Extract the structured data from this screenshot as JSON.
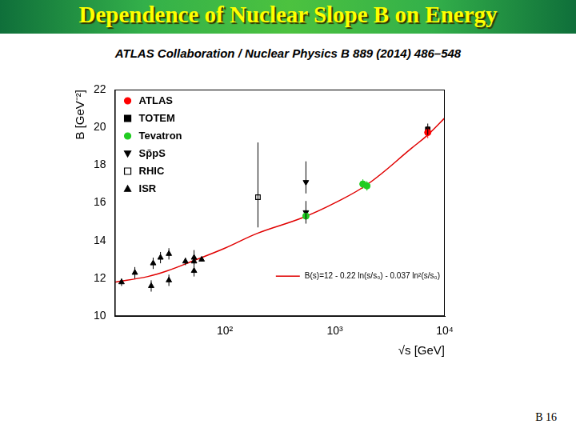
{
  "slide": {
    "title": "Dependence of Nuclear Slope B on Energy",
    "citation": "ATLAS Collaboration / Nuclear Physics B 889 (2014) 486–548",
    "page": "B 16"
  },
  "chart_data": {
    "type": "scatter",
    "x_label": "√s [GeV]",
    "y_label": "B [GeV⁻²]",
    "log": "x",
    "grid": false,
    "legend": "upper left",
    "xlim": [
      10,
      10000
    ],
    "xticks": [
      {
        "value": 100,
        "label": "10²"
      },
      {
        "value": 1000,
        "label": "10³"
      },
      {
        "value": 10000,
        "label": "10⁴"
      }
    ],
    "ylim": [
      10,
      22
    ],
    "yticks": [
      10,
      12,
      14,
      16,
      18,
      20,
      22
    ],
    "series": [
      {
        "name": "ATLAS",
        "color": "#ff0000",
        "marker": "circle",
        "x": [
          7000
        ],
        "values": [
          19.73
        ],
        "error_minus": [
          0.3
        ],
        "error_plus": [
          0.3
        ]
      },
      {
        "name": "TOTEM",
        "color": "#000000",
        "marker": "square",
        "x": [
          7000
        ],
        "values": [
          19.9
        ],
        "error_minus": [
          0.3
        ],
        "error_plus": [
          0.3
        ]
      },
      {
        "name": "Tevatron",
        "color": "#22cc22",
        "marker": "circle",
        "x": [
          546,
          1800,
          1960
        ],
        "values": [
          15.3,
          17.0,
          16.9
        ],
        "error_minus": [
          0.2,
          0.25,
          0.25
        ],
        "error_plus": [
          0.2,
          0.25,
          0.25
        ]
      },
      {
        "name": "Sp̄pS",
        "color": "#000000",
        "marker": "triangle-down",
        "x": [
          546,
          546
        ],
        "values": [
          17.1,
          15.5
        ],
        "error_minus": [
          0.6,
          0.6
        ],
        "error_plus": [
          1.1,
          0.6
        ]
      },
      {
        "name": "RHIC",
        "color": "#000000",
        "marker": "square-open",
        "x": [
          200
        ],
        "values": [
          16.3
        ],
        "error_minus": [
          1.6
        ],
        "error_plus": [
          2.9
        ]
      },
      {
        "name": "ISR",
        "color": "#000000",
        "marker": "triangle-up",
        "x": [
          11.5,
          15.2,
          21.4,
          22.3,
          26,
          31,
          31,
          43.8,
          52.5,
          52.5,
          52.5,
          61.6
        ],
        "values": [
          11.8,
          12.3,
          11.6,
          12.8,
          13.1,
          13.3,
          11.9,
          12.9,
          13.1,
          12.4,
          12.9,
          13.0
        ],
        "error_minus": [
          0.2,
          0.3,
          0.3,
          0.3,
          0.3,
          0.3,
          0.3,
          0.2,
          0.4,
          0.3,
          0.2,
          0.1
        ],
        "error_plus": [
          0.2,
          0.3,
          0.3,
          0.3,
          0.3,
          0.3,
          0.3,
          0.2,
          0.4,
          0.3,
          0.2,
          0.1
        ]
      },
      {
        "name": "B(s)=12 - 0.22 ln(s/s₀) - 0.037 ln²(s/s₀)",
        "color": "#e00000",
        "type": "line",
        "marker": "none",
        "line_style": "solid",
        "x": [
          10,
          20,
          30,
          50,
          100,
          200,
          500,
          1000,
          2000,
          5000,
          7000,
          10000
        ],
        "values": [
          11.8,
          12.1,
          12.4,
          12.9,
          13.6,
          14.4,
          15.2,
          16.0,
          17.0,
          18.9,
          19.6,
          20.5
        ]
      }
    ]
  }
}
